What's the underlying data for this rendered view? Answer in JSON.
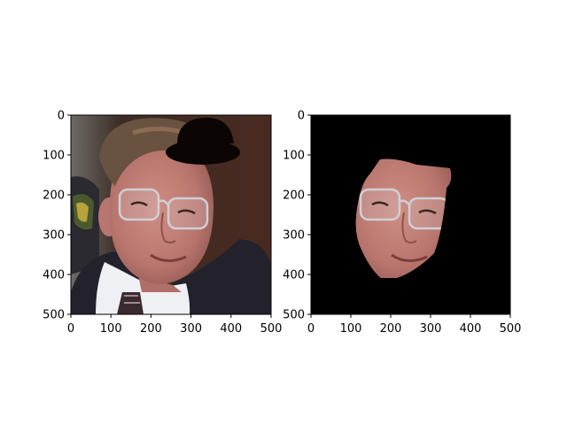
{
  "figure": {
    "panels": [
      {
        "content": "original-photo-with-hat",
        "x_ticks": [
          "0",
          "100",
          "200",
          "300",
          "400",
          "500"
        ],
        "y_ticks": [
          "0",
          "100",
          "200",
          "300",
          "400",
          "500"
        ]
      },
      {
        "content": "segmented-face-on-black",
        "x_ticks": [
          "0",
          "100",
          "200",
          "300",
          "400",
          "500"
        ],
        "y_ticks": [
          "0",
          "100",
          "200",
          "300",
          "400",
          "500"
        ]
      }
    ]
  },
  "colors": {
    "background": "#ffffff",
    "axis": "#000000",
    "mask_background": "#000000",
    "hat": "#0b0504",
    "suit": "#23222c",
    "shirt": "#eef0f4",
    "hair": "#6a5240",
    "skin": "#c0807a",
    "wall": "#3a2a22"
  }
}
